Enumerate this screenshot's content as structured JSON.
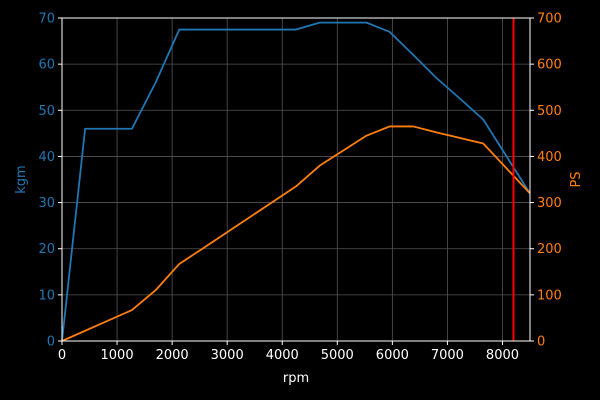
{
  "chart_data": {
    "type": "line",
    "xlabel": "rpm",
    "ylabel_left": "kgm",
    "ylabel_right": "PS",
    "xlim": [
      0,
      8500
    ],
    "ylim_left": [
      0,
      70
    ],
    "ylim_right": [
      0,
      700
    ],
    "x_ticks": [
      0,
      1000,
      2000,
      3000,
      4000,
      5000,
      6000,
      7000,
      8000
    ],
    "y_ticks_left": [
      0,
      10,
      20,
      30,
      40,
      50,
      60,
      70
    ],
    "y_ticks_right": [
      0,
      100,
      200,
      300,
      400,
      500,
      600,
      700
    ],
    "grid": true,
    "redline_x": 8200,
    "series": [
      {
        "axis": "left",
        "color": "#1f77b4",
        "points": [
          [
            0,
            0
          ],
          [
            420,
            46
          ],
          [
            1270,
            46
          ],
          [
            1700,
            56
          ],
          [
            2130,
            67.5
          ],
          [
            4250,
            67.5
          ],
          [
            4680,
            69
          ],
          [
            5530,
            69
          ],
          [
            5950,
            67
          ],
          [
            6380,
            62
          ],
          [
            6800,
            57
          ],
          [
            7230,
            52.5
          ],
          [
            7650,
            48
          ],
          [
            8500,
            32
          ]
        ]
      },
      {
        "axis": "right",
        "color": "#ff7f0e",
        "points": [
          [
            0,
            0
          ],
          [
            1270,
            67
          ],
          [
            1700,
            110
          ],
          [
            2130,
            167
          ],
          [
            2550,
            200
          ],
          [
            4250,
            335
          ],
          [
            4680,
            380
          ],
          [
            5530,
            445
          ],
          [
            5950,
            465
          ],
          [
            6380,
            465
          ],
          [
            6800,
            452
          ],
          [
            7230,
            440
          ],
          [
            7650,
            428
          ],
          [
            8500,
            320
          ]
        ]
      }
    ],
    "colors": {
      "background": "#000000",
      "axes": "#ffffff",
      "left_axis": "#1f77b4",
      "right_axis": "#ff7f0e",
      "redline": "#ff0000",
      "grid": "#555555"
    }
  }
}
